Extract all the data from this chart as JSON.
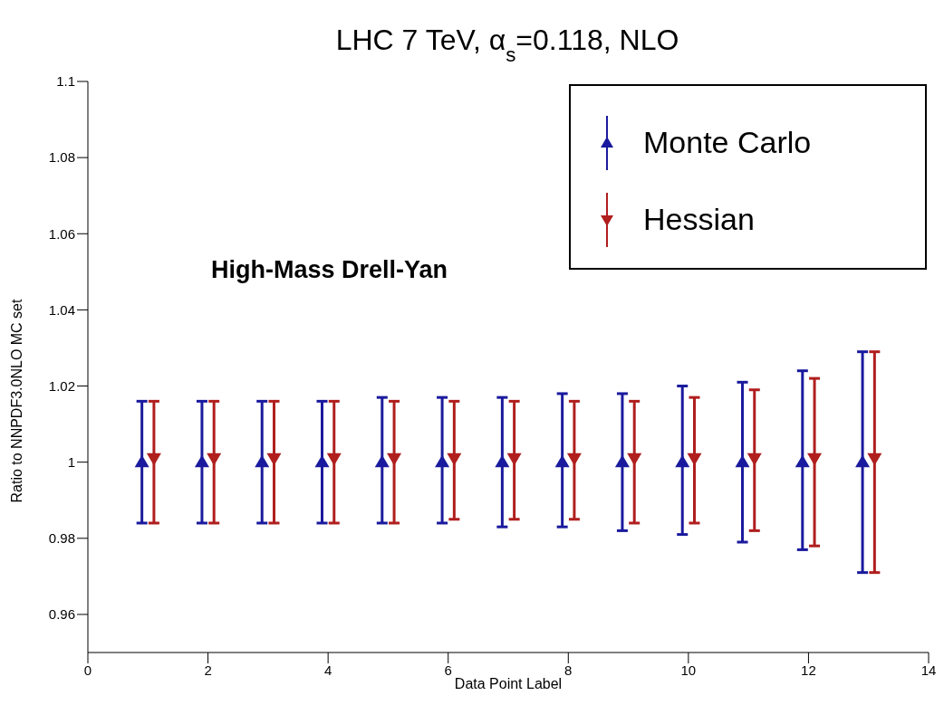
{
  "chart_data": {
    "type": "scatter",
    "title": "LHC 7 TeV, α$_{s}$=0.118, NLO",
    "xlabel": "Data Point Label",
    "ylabel": "Ratio to NNPDF3.0NLO MC set",
    "annotations": [
      "High-Mass Drell-Yan"
    ],
    "xlim": [
      0,
      14
    ],
    "xticks": [
      0,
      2,
      4,
      6,
      8,
      10,
      12,
      14
    ],
    "ylim": [
      0.95,
      1.1
    ],
    "yticks": [
      0.96,
      0.98,
      1,
      1.02,
      1.04,
      1.06,
      1.08,
      1.1
    ],
    "grid": false,
    "legend": "top right",
    "series": [
      {
        "name": "Monte Carlo",
        "color": "#1a1a9e",
        "marker": "triangle",
        "x": [
          0.9,
          1.9,
          2.9,
          3.9,
          4.9,
          5.9,
          6.9,
          7.9,
          8.9,
          9.9,
          10.9,
          11.9,
          12.9
        ],
        "values": [
          1,
          1,
          1,
          1,
          1,
          1,
          1,
          1,
          1,
          1,
          1,
          1,
          1
        ],
        "errors": [
          [
            0.984,
            1.016
          ],
          [
            0.984,
            1.016
          ],
          [
            0.984,
            1.016
          ],
          [
            0.984,
            1.016
          ],
          [
            0.984,
            1.017
          ],
          [
            0.984,
            1.017
          ],
          [
            0.983,
            1.017
          ],
          [
            0.983,
            1.018
          ],
          [
            0.982,
            1.018
          ],
          [
            0.981,
            1.02
          ],
          [
            0.979,
            1.021
          ],
          [
            0.977,
            1.024
          ],
          [
            0.971,
            1.029
          ]
        ]
      },
      {
        "name": "Hessian",
        "color": "#b01e1e",
        "marker": "triangle_down",
        "x": [
          1.1,
          2.1,
          3.1,
          4.1,
          5.1,
          6.1,
          7.1,
          8.1,
          9.1,
          10.1,
          11.1,
          12.1,
          13.1
        ],
        "values": [
          1.001,
          1.001,
          1.001,
          1.001,
          1.001,
          1.001,
          1.001,
          1.001,
          1.001,
          1.001,
          1.001,
          1.001,
          1.001
        ],
        "errors": [
          [
            0.984,
            1.016
          ],
          [
            0.984,
            1.016
          ],
          [
            0.984,
            1.016
          ],
          [
            0.984,
            1.016
          ],
          [
            0.984,
            1.016
          ],
          [
            0.985,
            1.016
          ],
          [
            0.985,
            1.016
          ],
          [
            0.985,
            1.016
          ],
          [
            0.984,
            1.016
          ],
          [
            0.984,
            1.017
          ],
          [
            0.982,
            1.019
          ],
          [
            0.978,
            1.022
          ],
          [
            0.971,
            1.029
          ]
        ]
      }
    ]
  }
}
